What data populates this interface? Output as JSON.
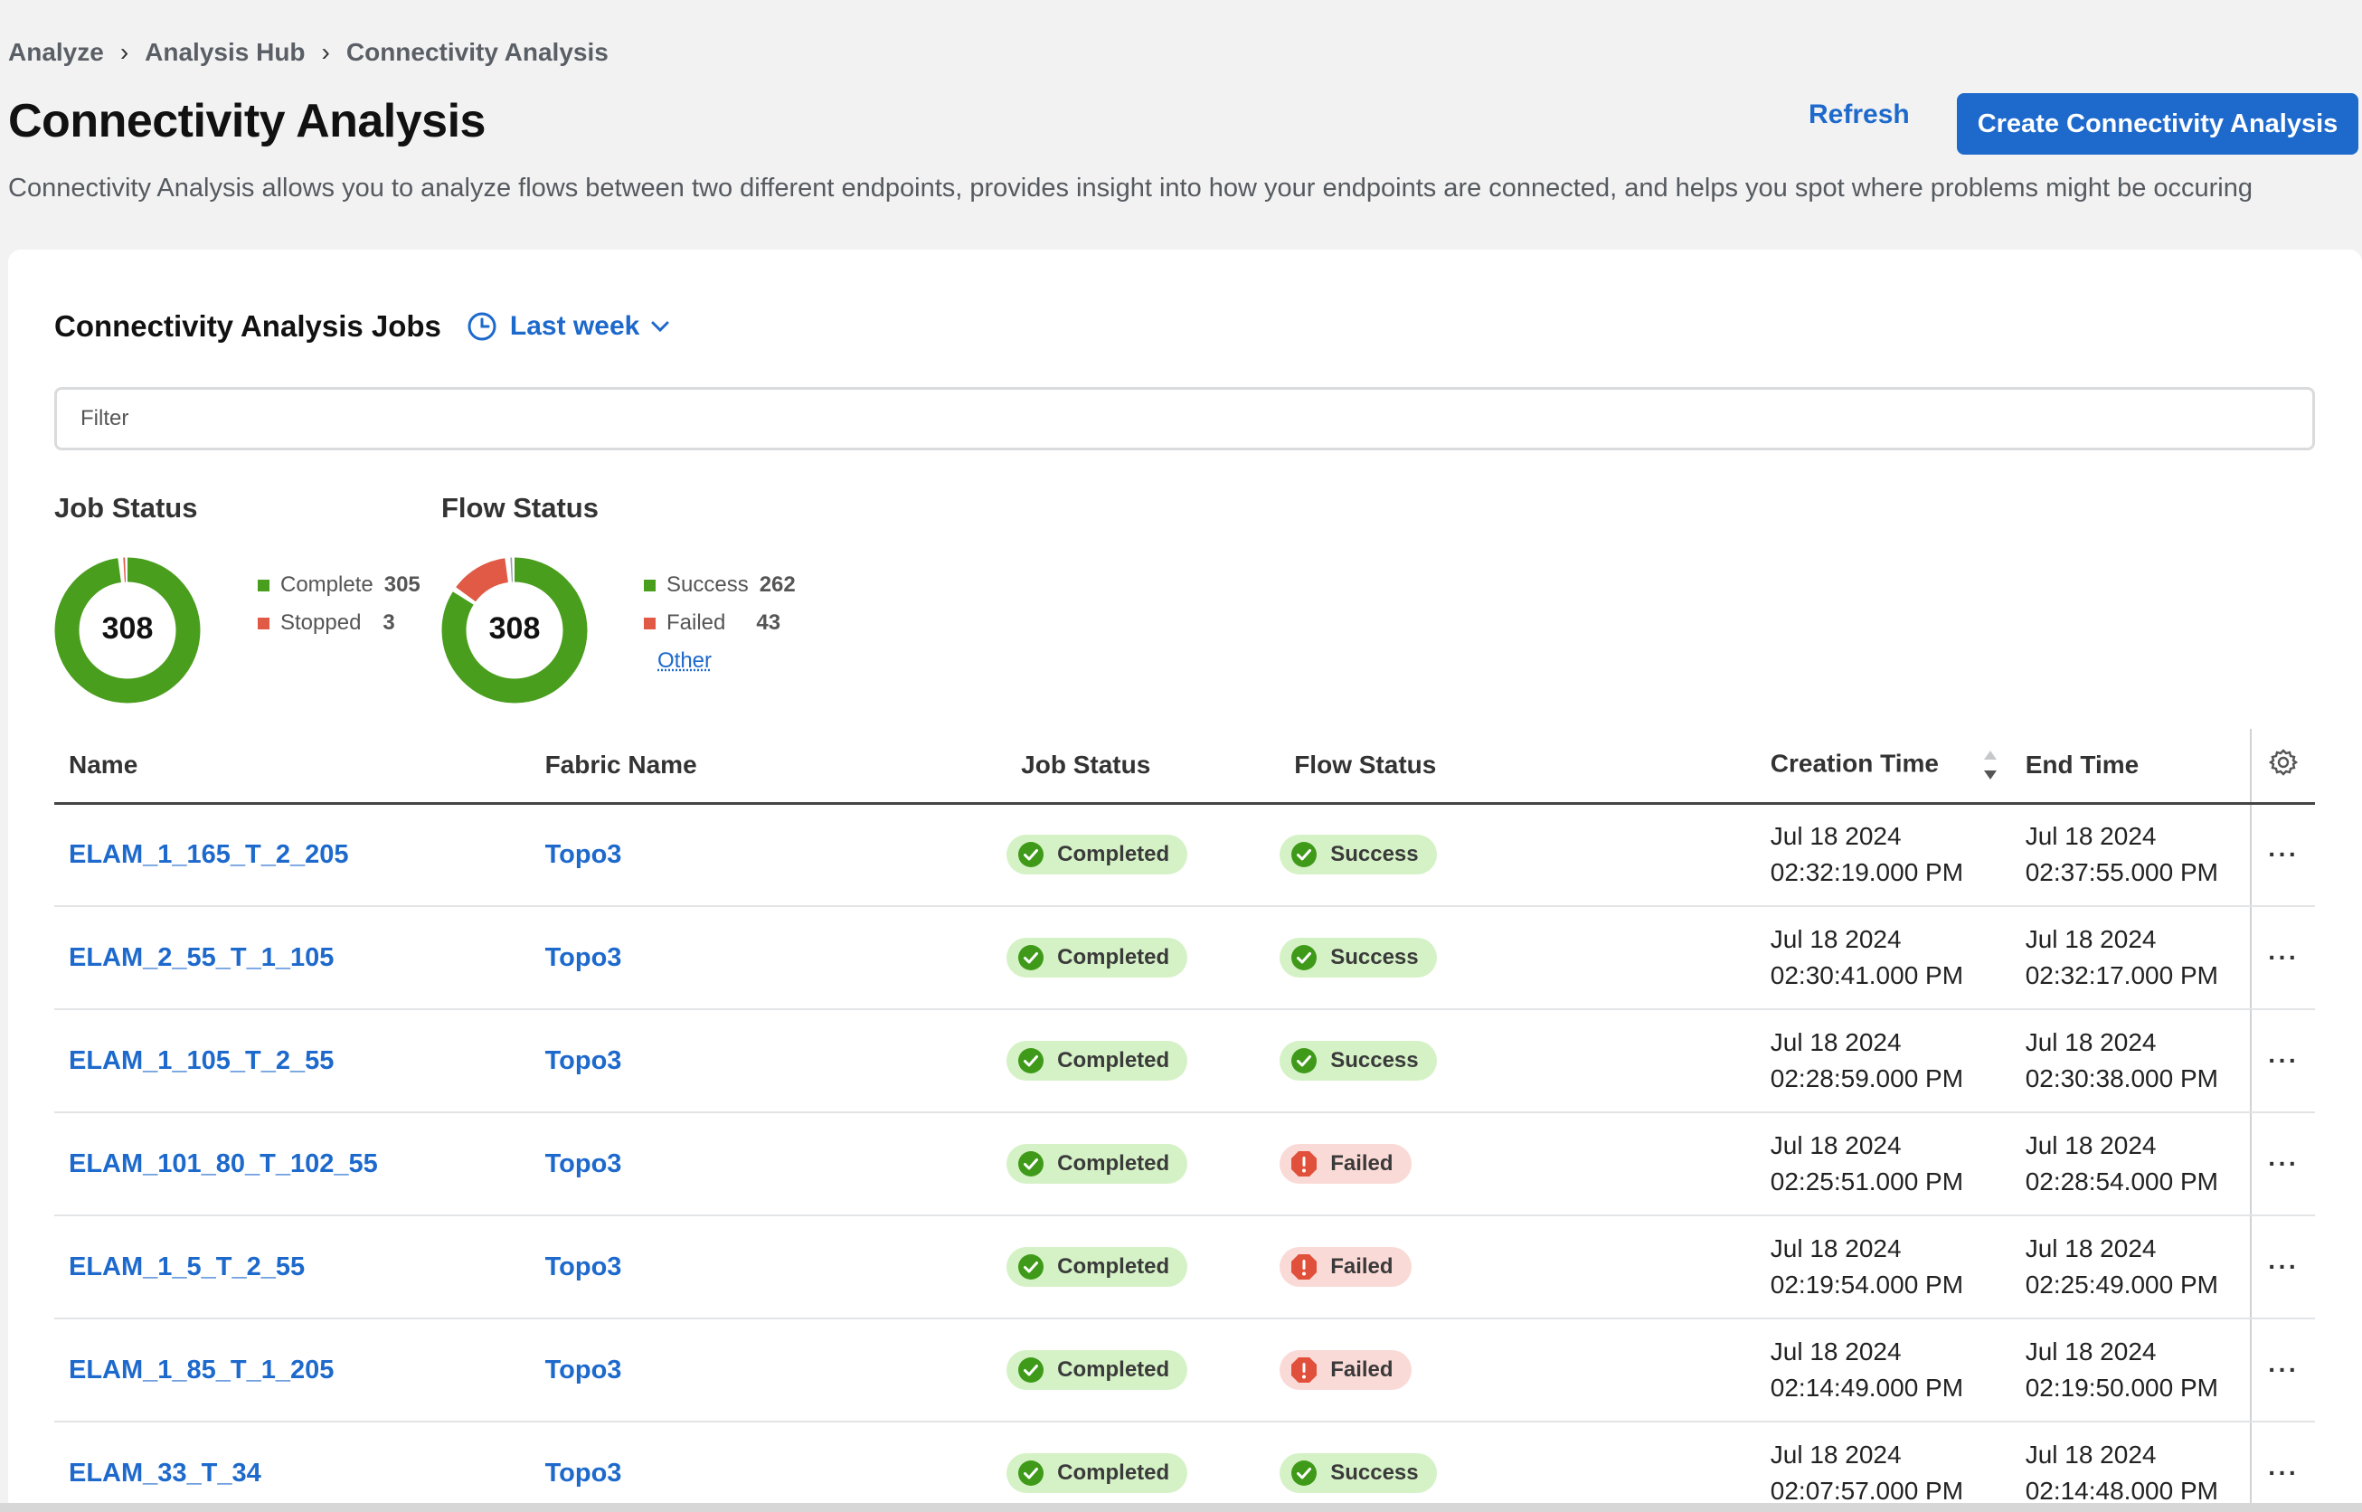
{
  "breadcrumb": [
    "Analyze",
    "Analysis Hub",
    "Connectivity Analysis"
  ],
  "page": {
    "title": "Connectivity Analysis",
    "refresh_label": "Refresh",
    "create_label": "Create Connectivity Analysis",
    "description": "Connectivity Analysis allows you to analyze flows between two different endpoints, provides insight into how your endpoints are connected, and helps you spot where problems might be occuring"
  },
  "jobs_section": {
    "title": "Connectivity Analysis Jobs",
    "time_range": "Last week",
    "filter_placeholder": "Filter"
  },
  "job_status_chart": {
    "title": "Job Status",
    "total": "308",
    "items": [
      {
        "label": "Complete",
        "value": 305,
        "color": "#4a9e1e"
      },
      {
        "label": "Stopped",
        "value": 3,
        "color": "#e05a45"
      }
    ]
  },
  "flow_status_chart": {
    "title": "Flow Status",
    "total": "308",
    "items": [
      {
        "label": "Success",
        "value": 262,
        "color": "#4a9e1e"
      },
      {
        "label": "Failed",
        "value": 43,
        "color": "#e05a45"
      }
    ],
    "other": {
      "label": "Other",
      "value": 3,
      "color": "#9aa0a6"
    }
  },
  "table": {
    "columns": {
      "name": "Name",
      "fabric": "Fabric Name",
      "job_status": "Job Status",
      "flow_status": "Flow Status",
      "creation": "Creation Time",
      "end": "End Time"
    },
    "rows": [
      {
        "name": "ELAM_1_165_T_2_205",
        "fabric": "Topo3",
        "job_status": "Completed",
        "flow_status": "Success",
        "flow_ok": true,
        "creation_date": "Jul 18 2024",
        "creation_time": "02:32:19.000 PM",
        "end_date": "Jul 18 2024",
        "end_time": "02:37:55.000 PM"
      },
      {
        "name": "ELAM_2_55_T_1_105",
        "fabric": "Topo3",
        "job_status": "Completed",
        "flow_status": "Success",
        "flow_ok": true,
        "creation_date": "Jul 18 2024",
        "creation_time": "02:30:41.000 PM",
        "end_date": "Jul 18 2024",
        "end_time": "02:32:17.000 PM"
      },
      {
        "name": "ELAM_1_105_T_2_55",
        "fabric": "Topo3",
        "job_status": "Completed",
        "flow_status": "Success",
        "flow_ok": true,
        "creation_date": "Jul 18 2024",
        "creation_time": "02:28:59.000 PM",
        "end_date": "Jul 18 2024",
        "end_time": "02:30:38.000 PM"
      },
      {
        "name": "ELAM_101_80_T_102_55",
        "fabric": "Topo3",
        "job_status": "Completed",
        "flow_status": "Failed",
        "flow_ok": false,
        "creation_date": "Jul 18 2024",
        "creation_time": "02:25:51.000 PM",
        "end_date": "Jul 18 2024",
        "end_time": "02:28:54.000 PM"
      },
      {
        "name": "ELAM_1_5_T_2_55",
        "fabric": "Topo3",
        "job_status": "Completed",
        "flow_status": "Failed",
        "flow_ok": false,
        "creation_date": "Jul 18 2024",
        "creation_time": "02:19:54.000 PM",
        "end_date": "Jul 18 2024",
        "end_time": "02:25:49.000 PM"
      },
      {
        "name": "ELAM_1_85_T_1_205",
        "fabric": "Topo3",
        "job_status": "Completed",
        "flow_status": "Failed",
        "flow_ok": false,
        "creation_date": "Jul 18 2024",
        "creation_time": "02:14:49.000 PM",
        "end_date": "Jul 18 2024",
        "end_time": "02:19:50.000 PM"
      },
      {
        "name": "ELAM_33_T_34",
        "fabric": "Topo3",
        "job_status": "Completed",
        "flow_status": "Success",
        "flow_ok": true,
        "creation_date": "Jul 18 2024",
        "creation_time": "02:07:57.000 PM",
        "end_date": "Jul 18 2024",
        "end_time": "02:14:48.000 PM"
      }
    ]
  },
  "icons": {
    "time_picker": "clock-icon",
    "dropdown": "chevron-down-icon",
    "settings": "gear-icon",
    "sort": "sort-icon",
    "row_actions": "more-horizontal-icon",
    "ok_badge": "check-circle-icon",
    "failed_badge": "error-octagon-icon"
  }
}
